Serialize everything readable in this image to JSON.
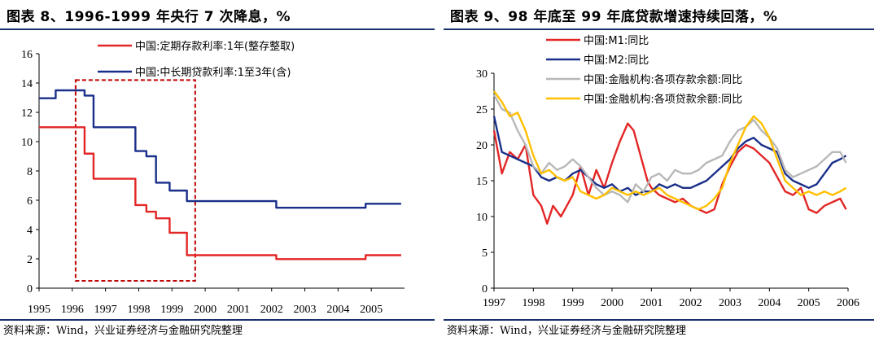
{
  "left": {
    "title": "图表 8、1996-1999 年央行 7 次降息，%",
    "source": "资料来源：Wind，兴业证券经济与金融研究院整理"
  },
  "right": {
    "title": "图表 9、98 年底至 99 年底贷款增速持续回落，%",
    "source": "资料来源：Wind，兴业证券经济与金融研究院整理"
  },
  "chart_data": [
    {
      "type": "line",
      "xlim": [
        1995,
        2006
      ],
      "ylim": [
        0,
        16
      ],
      "xticks": [
        1995,
        1996,
        1997,
        1998,
        1999,
        2000,
        2001,
        2002,
        2003,
        2004,
        2005
      ],
      "yticks": [
        0,
        2,
        4,
        6,
        8,
        10,
        12,
        14,
        16
      ],
      "legend_position": "top-right",
      "grid": false,
      "series": [
        {
          "name": "中国:定期存款利率:1年(整存整取)",
          "color": "#e32626",
          "step": true,
          "x": [
            1995.0,
            1996.37,
            1996.64,
            1997.9,
            1998.23,
            1998.52,
            1998.93,
            1999.45,
            2002.14,
            2004.83,
            2005.9
          ],
          "y": [
            10.98,
            9.18,
            7.47,
            5.67,
            5.22,
            4.77,
            3.78,
            2.25,
            1.98,
            2.25,
            2.25
          ]
        },
        {
          "name": "中国:中长期贷款利率:1至3年(含)",
          "color": "#1a2f8a",
          "step": true,
          "x": [
            1995.0,
            1995.5,
            1996.37,
            1996.64,
            1997.9,
            1998.23,
            1998.52,
            1998.93,
            1999.45,
            2002.14,
            2004.83,
            2005.9
          ],
          "y": [
            12.96,
            13.5,
            13.14,
            10.98,
            9.36,
            9.0,
            7.2,
            6.66,
            5.94,
            5.49,
            5.76,
            5.76
          ]
        }
      ],
      "annotation": {
        "type": "dashed-rectangle",
        "x": [
          1996.1,
          1999.7
        ],
        "y": [
          0.5,
          14.2
        ],
        "color": "#c00000"
      }
    },
    {
      "type": "line",
      "xlim": [
        1997,
        2006
      ],
      "ylim": [
        0,
        30
      ],
      "xticks": [
        1997,
        1998,
        1999,
        2000,
        2001,
        2002,
        2003,
        2004,
        2005,
        2006
      ],
      "yticks": [
        0,
        5,
        10,
        15,
        20,
        25,
        30
      ],
      "legend_position": "top-left",
      "grid": false,
      "series": [
        {
          "name": "中国:M1:同比",
          "color": "#e32626",
          "x": [
            1997.0,
            1997.2,
            1997.4,
            1997.6,
            1997.8,
            1998.0,
            1998.2,
            1998.35,
            1998.5,
            1998.7,
            1998.9,
            1999.0,
            1999.2,
            1999.4,
            1999.6,
            1999.8,
            2000.0,
            2000.2,
            2000.4,
            2000.55,
            2000.7,
            2000.9,
            2001.0,
            2001.2,
            2001.4,
            2001.6,
            2001.8,
            2002.0,
            2002.2,
            2002.4,
            2002.6,
            2002.8,
            2003.0,
            2003.2,
            2003.4,
            2003.6,
            2003.8,
            2004.0,
            2004.2,
            2004.4,
            2004.6,
            2004.8,
            2005.0,
            2005.2,
            2005.4,
            2005.6,
            2005.8,
            2005.95
          ],
          "y": [
            22.0,
            16.0,
            19.0,
            18.0,
            20.0,
            13.0,
            11.5,
            9.0,
            11.5,
            10.0,
            12.0,
            13.0,
            17.0,
            13.0,
            16.5,
            14.0,
            17.5,
            20.5,
            23.0,
            22.0,
            19.0,
            15.0,
            14.0,
            13.0,
            12.5,
            12.0,
            12.5,
            11.5,
            11.0,
            10.5,
            11.0,
            14.5,
            17.0,
            19.0,
            20.0,
            19.5,
            18.5,
            17.5,
            15.5,
            13.5,
            13.0,
            14.0,
            11.0,
            10.5,
            11.5,
            12.0,
            12.5,
            11.0
          ]
        },
        {
          "name": "中国:M2:同比",
          "color": "#1a2f8a",
          "x": [
            1997.0,
            1997.2,
            1997.4,
            1997.6,
            1997.8,
            1998.0,
            1998.2,
            1998.4,
            1998.6,
            1998.8,
            1999.0,
            1999.2,
            1999.4,
            1999.6,
            1999.8,
            2000.0,
            2000.2,
            2000.4,
            2000.6,
            2000.8,
            2001.0,
            2001.2,
            2001.4,
            2001.6,
            2001.8,
            2002.0,
            2002.2,
            2002.4,
            2002.6,
            2002.8,
            2003.0,
            2003.2,
            2003.4,
            2003.6,
            2003.8,
            2004.0,
            2004.2,
            2004.4,
            2004.6,
            2004.8,
            2005.0,
            2005.2,
            2005.4,
            2005.6,
            2005.8,
            2005.95
          ],
          "y": [
            24.0,
            19.0,
            18.5,
            18.0,
            17.5,
            17.0,
            15.5,
            15.0,
            15.5,
            15.0,
            16.0,
            16.5,
            15.5,
            14.5,
            14.0,
            14.5,
            13.5,
            14.0,
            13.0,
            13.5,
            13.5,
            14.5,
            14.0,
            14.5,
            14.0,
            14.0,
            14.5,
            15.0,
            16.0,
            17.0,
            18.0,
            19.5,
            20.5,
            21.0,
            20.0,
            19.5,
            19.0,
            16.0,
            15.0,
            14.5,
            14.0,
            14.5,
            16.0,
            17.5,
            18.0,
            18.5
          ]
        },
        {
          "name": "中国:金融机构:各项存款余额:同比",
          "color": "#b8b8b8",
          "x": [
            1997.0,
            1997.2,
            1997.4,
            1997.6,
            1997.8,
            1998.0,
            1998.2,
            1998.4,
            1998.6,
            1998.8,
            1999.0,
            1999.2,
            1999.4,
            1999.6,
            1999.8,
            2000.0,
            2000.2,
            2000.4,
            2000.6,
            2000.8,
            2001.0,
            2001.2,
            2001.4,
            2001.6,
            2001.8,
            2002.0,
            2002.2,
            2002.4,
            2002.6,
            2002.8,
            2003.0,
            2003.2,
            2003.4,
            2003.6,
            2003.8,
            2004.0,
            2004.2,
            2004.4,
            2004.6,
            2004.8,
            2005.0,
            2005.2,
            2005.4,
            2005.6,
            2005.8,
            2005.95
          ],
          "y": [
            27.0,
            25.0,
            24.5,
            22.0,
            20.0,
            17.0,
            16.0,
            17.5,
            16.5,
            17.0,
            18.0,
            17.0,
            15.5,
            14.0,
            13.0,
            13.5,
            13.0,
            12.0,
            14.5,
            13.5,
            15.5,
            16.0,
            15.0,
            16.5,
            16.0,
            16.0,
            16.5,
            17.5,
            18.0,
            18.5,
            20.5,
            22.0,
            22.5,
            23.5,
            22.0,
            21.0,
            19.5,
            16.5,
            15.5,
            16.0,
            16.5,
            17.0,
            18.0,
            19.0,
            19.0,
            17.5
          ]
        },
        {
          "name": "中国:金融机构:各项贷款余额:同比",
          "color": "#ffc000",
          "x": [
            1997.0,
            1997.2,
            1997.4,
            1997.6,
            1997.8,
            1998.0,
            1998.2,
            1998.4,
            1998.6,
            1998.8,
            1999.0,
            1999.2,
            1999.4,
            1999.6,
            1999.8,
            2000.0,
            2000.2,
            2000.4,
            2000.6,
            2000.8,
            2001.0,
            2001.2,
            2001.4,
            2001.6,
            2001.8,
            2002.0,
            2002.2,
            2002.4,
            2002.6,
            2002.8,
            2003.0,
            2003.2,
            2003.4,
            2003.6,
            2003.8,
            2004.0,
            2004.2,
            2004.4,
            2004.6,
            2004.8,
            2005.0,
            2005.2,
            2005.4,
            2005.6,
            2005.8,
            2005.95
          ],
          "y": [
            27.5,
            26.0,
            24.0,
            24.5,
            22.0,
            18.5,
            16.0,
            16.5,
            15.5,
            15.0,
            15.5,
            13.5,
            13.0,
            12.5,
            13.0,
            14.0,
            13.5,
            13.0,
            13.5,
            13.0,
            13.5,
            14.0,
            13.0,
            12.5,
            12.0,
            11.5,
            11.0,
            11.5,
            12.5,
            14.0,
            17.5,
            20.0,
            22.5,
            24.0,
            23.0,
            21.0,
            18.0,
            15.0,
            14.0,
            13.0,
            13.5,
            13.0,
            13.5,
            13.0,
            13.5,
            14.0
          ]
        }
      ]
    }
  ]
}
